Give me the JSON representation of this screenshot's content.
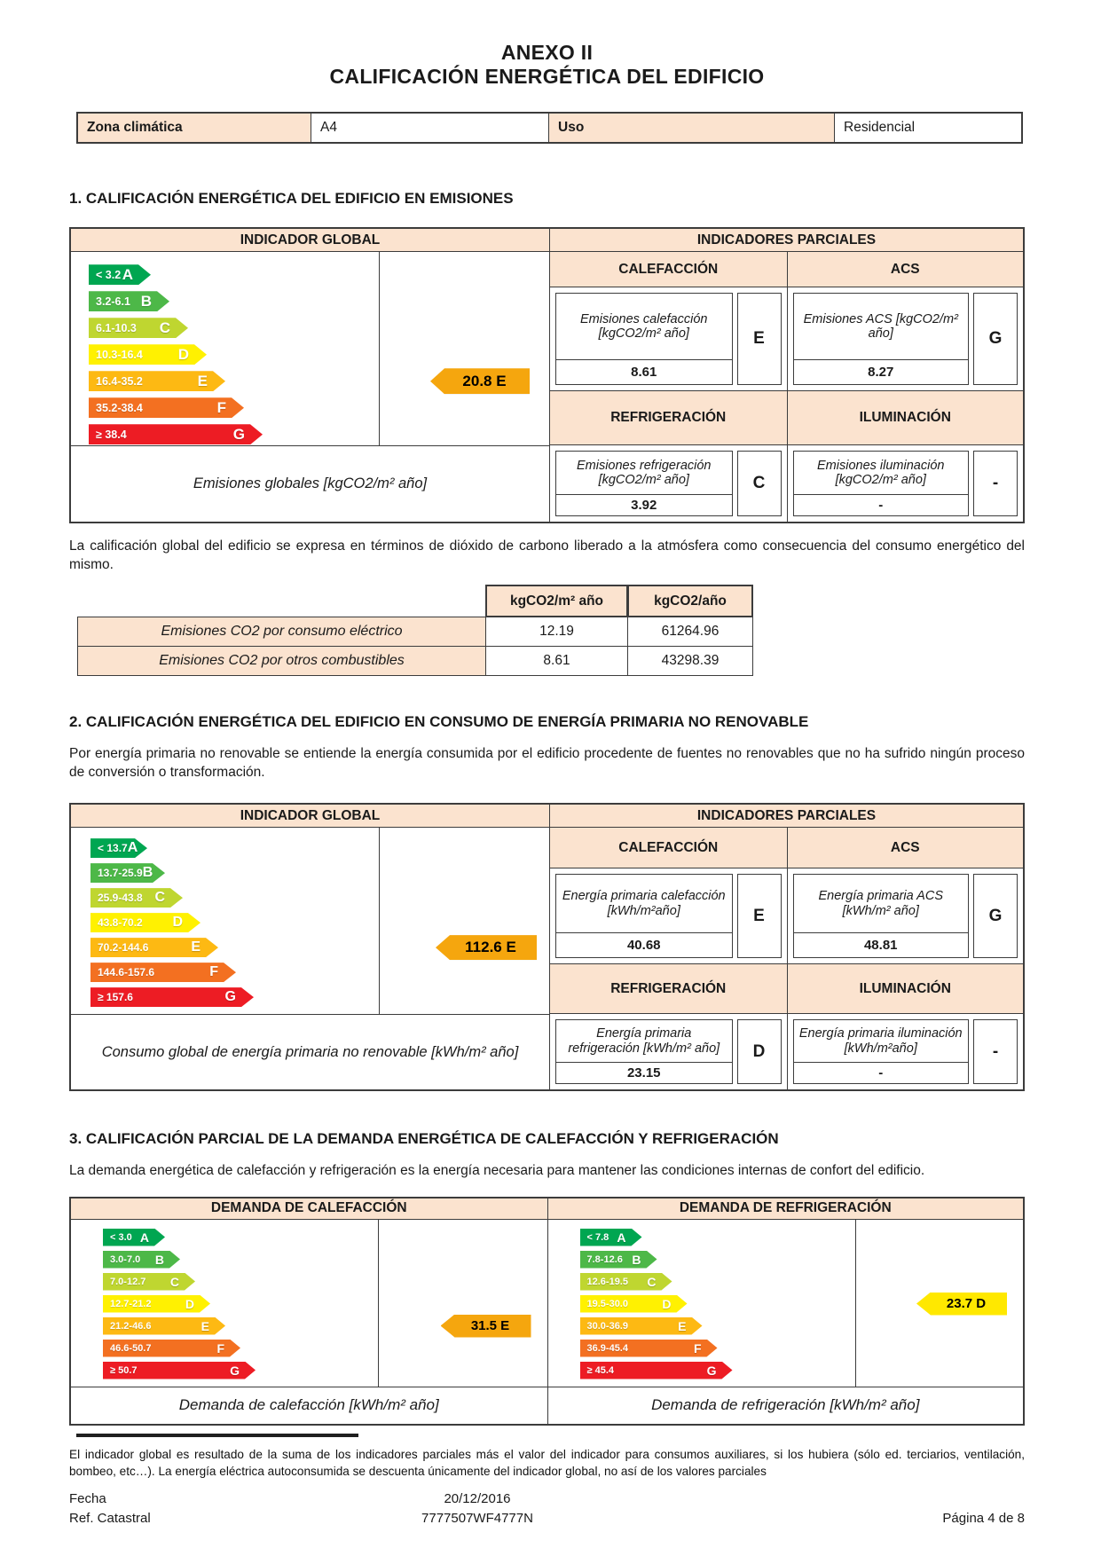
{
  "page": {
    "title_line1": "ANEXO II",
    "title_line2": "CALIFICACIÓN ENERGÉTICA DEL EDIFICIO"
  },
  "info": {
    "zone_label": "Zona climática",
    "zone_value": "A4",
    "use_label": "Uso",
    "use_value": "Residencial"
  },
  "section1": {
    "heading": "1. CALIFICACIÓN ENERGÉTICA DEL EDIFICIO EN EMISIONES",
    "global_header": "INDICADOR GLOBAL",
    "partials_header": "INDICADORES PARCIALES",
    "scale": [
      {
        "range": "< 3.2",
        "letter": "A",
        "color": "#00a651"
      },
      {
        "range": "3.2-6.1",
        "letter": "B",
        "color": "#4db848"
      },
      {
        "range": "6.1-10.3",
        "letter": "C",
        "color": "#bfd630"
      },
      {
        "range": "10.3-16.4",
        "letter": "D",
        "color": "#fff101"
      },
      {
        "range": "16.4-35.2",
        "letter": "E",
        "color": "#fdb913"
      },
      {
        "range": "35.2-38.4",
        "letter": "F",
        "color": "#f37021"
      },
      {
        "range": "≥ 38.4",
        "letter": "G",
        "color": "#ed1c24"
      }
    ],
    "rating": {
      "label": "20.8 E",
      "color": "#f5a60e",
      "align_index": 4
    },
    "global_caption": "Emisiones globales [kgCO2/m² año]",
    "partials": [
      {
        "header": "CALEFACCIÓN",
        "label": "Emisiones calefacción [kgCO2/m² año]",
        "value": "8.61",
        "letter": "E"
      },
      {
        "header": "ACS",
        "label": "Emisiones ACS [kgCO2/m² año]",
        "value": "8.27",
        "letter": "G"
      },
      {
        "header": "REFRIGERACIÓN",
        "label": "Emisiones refrigeración [kgCO2/m² año]",
        "value": "3.92",
        "letter": "C"
      },
      {
        "header": "ILUMINACIÓN",
        "label": "Emisiones iluminación [kgCO2/m² año]",
        "value": "-",
        "letter": "-"
      }
    ]
  },
  "paragraph1": "La calificación global del edificio se expresa en términos de dióxido de carbono liberado a la atmósfera como consecuencia del consumo energético del mismo.",
  "co2_table": {
    "headers": [
      "kgCO2/m² año",
      "kgCO2/año"
    ],
    "rows": [
      {
        "label": "Emisiones CO2 por consumo eléctrico",
        "per_m2": "12.19",
        "total": "61264.96"
      },
      {
        "label": "Emisiones CO2 por otros combustibles",
        "per_m2": "8.61",
        "total": "43298.39"
      }
    ]
  },
  "section2": {
    "heading": "2. CALIFICACIÓN ENERGÉTICA DEL EDIFICIO EN CONSUMO DE ENERGÍA PRIMARIA NO RENOVABLE",
    "intro": "Por energía primaria no renovable se entiende la energía consumida por el edificio procedente de fuentes no renovables que no ha sufrido ningún proceso de conversión o transformación.",
    "global_header": "INDICADOR GLOBAL",
    "partials_header": "INDICADORES PARCIALES",
    "scale": [
      {
        "range": "< 13.7",
        "letter": "A",
        "color": "#00a651"
      },
      {
        "range": "13.7-25.9",
        "letter": "B",
        "color": "#4db848"
      },
      {
        "range": "25.9-43.8",
        "letter": "C",
        "color": "#bfd630"
      },
      {
        "range": "43.8-70.2",
        "letter": "D",
        "color": "#fff101"
      },
      {
        "range": "70.2-144.6",
        "letter": "E",
        "color": "#fdb913"
      },
      {
        "range": "144.6-157.6",
        "letter": "F",
        "color": "#f37021"
      },
      {
        "range": "≥ 157.6",
        "letter": "G",
        "color": "#ed1c24"
      }
    ],
    "rating": {
      "label": "112.6 E",
      "color": "#f5a60e",
      "align_index": 4
    },
    "global_caption": "Consumo global de energía primaria no renovable [kWh/m² año]",
    "partials": [
      {
        "header": "CALEFACCIÓN",
        "label": "Energía primaria calefacción [kWh/m²año]",
        "value": "40.68",
        "letter": "E"
      },
      {
        "header": "ACS",
        "label": "Energía primaria ACS [kWh/m² año]",
        "value": "48.81",
        "letter": "G"
      },
      {
        "header": "REFRIGERACIÓN",
        "label": "Energía primaria refrigeración [kWh/m² año]",
        "value": "23.15",
        "letter": "D"
      },
      {
        "header": "ILUMINACIÓN",
        "label": "Energía primaria iluminación [kWh/m²año]",
        "value": "-",
        "letter": "-"
      }
    ]
  },
  "section3": {
    "heading": "3. CALIFICACIÓN PARCIAL DE LA DEMANDA ENERGÉTICA DE CALEFACCIÓN Y REFRIGERACIÓN",
    "intro": "La demanda energética de calefacción y refrigeración es la energía necesaria para mantener las condiciones internas de confort del edificio.",
    "heating": {
      "header": "DEMANDA DE CALEFACCIÓN",
      "scale": [
        {
          "range": "< 3.0",
          "letter": "A",
          "color": "#00a651"
        },
        {
          "range": "3.0-7.0",
          "letter": "B",
          "color": "#4db848"
        },
        {
          "range": "7.0-12.7",
          "letter": "C",
          "color": "#bfd630"
        },
        {
          "range": "12.7-21.2",
          "letter": "D",
          "color": "#fff101"
        },
        {
          "range": "21.2-46.6",
          "letter": "E",
          "color": "#fdb913"
        },
        {
          "range": "46.6-50.7",
          "letter": "F",
          "color": "#f37021"
        },
        {
          "range": "≥ 50.7",
          "letter": "G",
          "color": "#ed1c24"
        }
      ],
      "rating": {
        "label": "31.5 E",
        "color": "#f5a60e",
        "align_index": 4
      },
      "caption": "Demanda de calefacción [kWh/m² año]"
    },
    "cooling": {
      "header": "DEMANDA DE REFRIGERACIÓN",
      "scale": [
        {
          "range": "< 7.8",
          "letter": "A",
          "color": "#00a651"
        },
        {
          "range": "7.8-12.6",
          "letter": "B",
          "color": "#4db848"
        },
        {
          "range": "12.6-19.5",
          "letter": "C",
          "color": "#bfd630"
        },
        {
          "range": "19.5-30.0",
          "letter": "D",
          "color": "#fff101"
        },
        {
          "range": "30.0-36.9",
          "letter": "E",
          "color": "#fdb913"
        },
        {
          "range": "36.9-45.4",
          "letter": "F",
          "color": "#f37021"
        },
        {
          "range": "≥ 45.4",
          "letter": "G",
          "color": "#ed1c24"
        }
      ],
      "rating": {
        "label": "23.7 D",
        "color": "#ffe800",
        "align_index": 3
      },
      "caption": "Demanda de refrigeración [kWh/m² año]"
    }
  },
  "footnote": "El indicador global es resultado de la suma de los indicadores parciales más el valor del indicador para consumos auxiliares, si los hubiera (sólo ed. terciarios, ventilación, bombeo, etc…). La energía eléctrica autoconsumida se descuenta únicamente del indicador global, no así de los valores parciales",
  "footer": {
    "date_label": "Fecha",
    "date_value": "20/12/2016",
    "ref_label": "Ref. Catastral",
    "ref_value": "7777507WF4777N",
    "page": "Página 4 de 8"
  }
}
